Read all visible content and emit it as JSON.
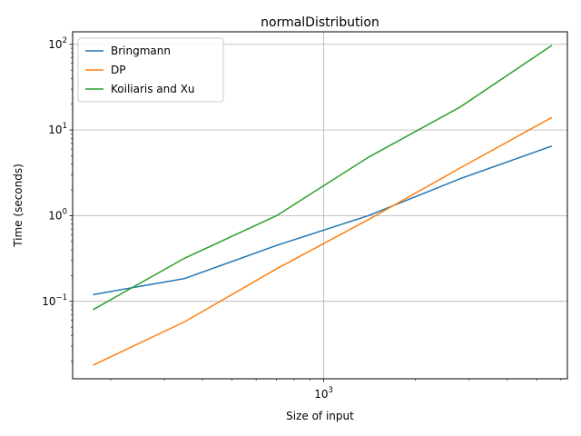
{
  "chart_data": {
    "type": "line",
    "title": "normalDistribution",
    "xlabel": "Size of input",
    "ylabel": "Time (seconds)",
    "x_scale": "log",
    "y_scale": "log",
    "xlim": [
      150,
      6300
    ],
    "ylim": [
      0.0125,
      140
    ],
    "grid": true,
    "legend_position": "top-left",
    "x_ticks": [
      {
        "value": 1000,
        "base": "10",
        "exp": "3"
      }
    ],
    "y_ticks": [
      {
        "value": 0.1,
        "base": "10",
        "exp": "−1"
      },
      {
        "value": 1,
        "base": "10",
        "exp": "0"
      },
      {
        "value": 10,
        "base": "10",
        "exp": "1"
      },
      {
        "value": 100,
        "base": "10",
        "exp": "2"
      }
    ],
    "x": [
      175,
      350,
      700,
      1400,
      2800,
      5600
    ],
    "series": [
      {
        "name": "Bringmann",
        "color": "#1f77b4",
        "values": [
          0.12,
          0.185,
          0.45,
          1.0,
          2.7,
          6.5
        ]
      },
      {
        "name": "DP",
        "color": "#ff7f0e",
        "values": [
          0.018,
          0.058,
          0.24,
          0.9,
          3.6,
          14.0
        ]
      },
      {
        "name": "Koiliaris and Xu",
        "color": "#2ca02c",
        "values": [
          0.08,
          0.32,
          1.0,
          4.8,
          18.5,
          97.0
        ]
      }
    ]
  }
}
